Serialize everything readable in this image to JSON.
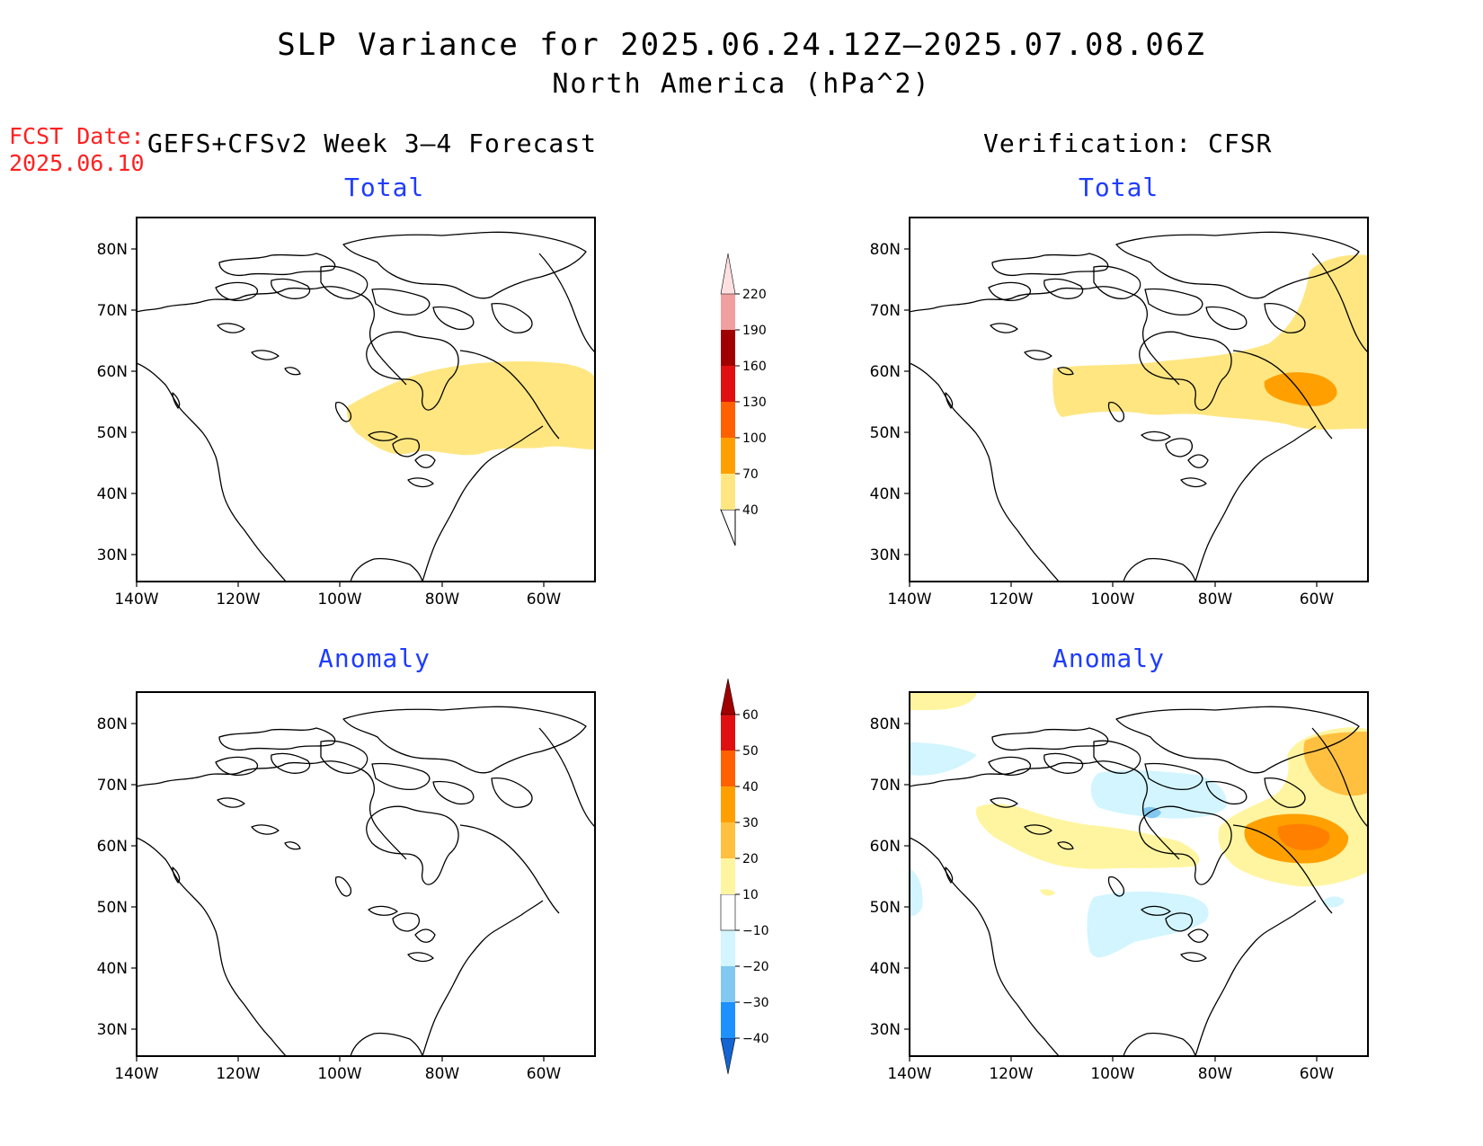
{
  "title": "SLP Variance for 2025.06.24.12Z–2025.07.08.06Z",
  "subtitle": "North America (hPa^2)",
  "fcst_label": "FCST Date:",
  "fcst_date": "2025.06.10",
  "left_header": "GEFS+CFSv2 Week 3–4 Forecast",
  "right_header": "Verification: CFSR",
  "panels": {
    "top_left": "Total",
    "top_right": "Total",
    "bottom_left": "Anomaly",
    "bottom_right": "Anomaly"
  },
  "axes": {
    "lat_ticks": [
      "80N",
      "70N",
      "60N",
      "50N",
      "40N",
      "30N"
    ],
    "lon_ticks": [
      "140W",
      "120W",
      "100W",
      "80W",
      "60W"
    ]
  },
  "colorbar_total": {
    "labels": [
      "40",
      "70",
      "100",
      "130",
      "160",
      "190",
      "220"
    ],
    "colors": [
      "#ffe680",
      "#ffa000",
      "#ff6000",
      "#e01010",
      "#a00000",
      "#f0a0a0",
      "#ffe0e0"
    ]
  },
  "colorbar_anomaly": {
    "labels": [
      "−40",
      "−30",
      "−20",
      "−10",
      "10",
      "20",
      "30",
      "40",
      "50",
      "60"
    ],
    "colors": [
      "#1464d2",
      "#1e90ff",
      "#82c8f0",
      "#d2f5ff",
      "#ffffff",
      "#fff5a0",
      "#ffc040",
      "#ffa000",
      "#ff6000",
      "#e01010",
      "#a00000"
    ]
  }
}
